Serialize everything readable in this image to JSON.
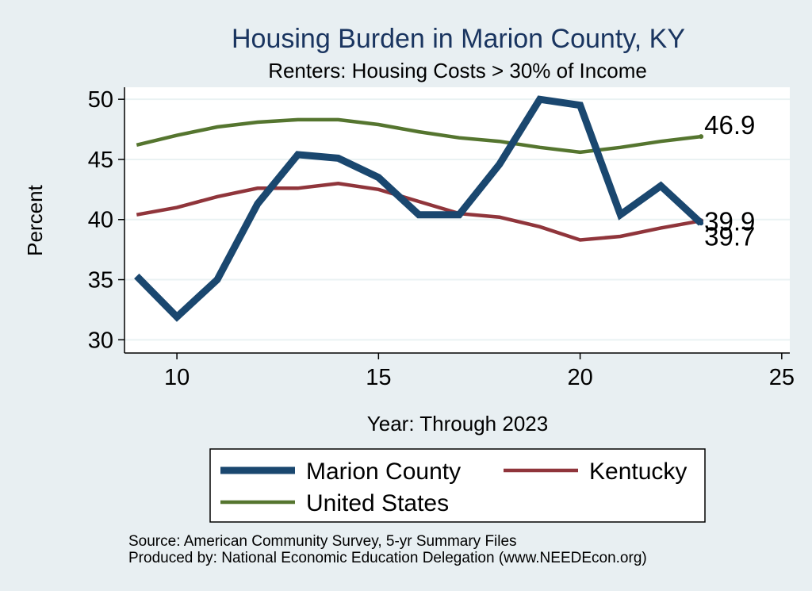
{
  "chart_data": {
    "type": "line",
    "title": "Housing Burden in Marion County, KY",
    "subtitle": "Renters: Housing Costs > 30% of Income",
    "xlabel": "Year: Through 2023",
    "ylabel": "Percent",
    "xlim": [
      8.7,
      25.2
    ],
    "ylim": [
      28.9,
      51.0
    ],
    "xticks": [
      10,
      15,
      20,
      25
    ],
    "yticks": [
      30,
      35,
      40,
      45,
      50
    ],
    "grid": true,
    "legend_position": "bottom",
    "x": [
      9,
      10,
      11,
      12,
      13,
      14,
      15,
      16,
      17,
      18,
      19,
      20,
      21,
      22,
      23
    ],
    "series": [
      {
        "name": "Marion County",
        "color": "#1a476f",
        "width": 9,
        "values": [
          35.3,
          31.9,
          35.0,
          41.3,
          45.4,
          45.1,
          43.5,
          40.4,
          40.4,
          44.6,
          50.0,
          49.5,
          40.4,
          42.8,
          39.7
        ],
        "end_label": "39.7"
      },
      {
        "name": "Kentucky",
        "color": "#90353b",
        "width": 4.5,
        "values": [
          40.4,
          41.0,
          41.9,
          42.6,
          42.6,
          43.0,
          42.5,
          41.5,
          40.5,
          40.2,
          39.4,
          38.3,
          38.6,
          39.3,
          39.9
        ],
        "end_label": "39.9"
      },
      {
        "name": "United States",
        "color": "#55752f",
        "width": 4.5,
        "values": [
          46.2,
          47.0,
          47.7,
          48.1,
          48.3,
          48.3,
          47.9,
          47.3,
          46.8,
          46.5,
          46.0,
          45.6,
          46.0,
          46.5,
          46.9
        ],
        "end_label": "46.9"
      }
    ],
    "source_lines": [
      "Source: American Community Survey, 5-yr Summary Files",
      "Produced by: National Economic Education Delegation (www.NEEDEcon.org)"
    ]
  }
}
